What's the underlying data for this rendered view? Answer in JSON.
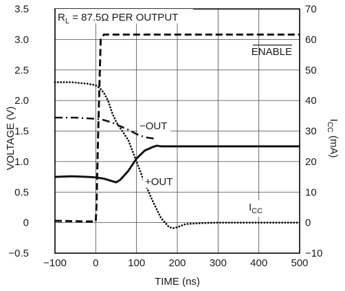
{
  "chart_data": {
    "type": "line",
    "title": "",
    "xlabel": "TIME (ns)",
    "ylabel_left": "VOLTAGE (V)",
    "ylabel_right": {
      "base": "I",
      "sub": "CC",
      "suffix": " (mA)"
    },
    "xlim": [
      -100,
      500
    ],
    "ylim_left": [
      -0.5,
      3.5
    ],
    "ylim_right": [
      -10,
      70
    ],
    "grid": true,
    "legend": "none",
    "x_ticks": [
      -100,
      0,
      100,
      200,
      300,
      400,
      500
    ],
    "x_tick_labels": [
      "−100",
      "0",
      "100",
      "200",
      "300",
      "400",
      "500"
    ],
    "y_left_ticks": [
      -0.5,
      0,
      0.5,
      1.0,
      1.5,
      2.0,
      2.5,
      3.0,
      3.5
    ],
    "y_left_tick_labels": [
      "−0.5",
      "0",
      "0.5",
      "1.0",
      "1.5",
      "2.0",
      "2.5",
      "3.0",
      "3.5"
    ],
    "y_right_ticks": [
      -10,
      0,
      10,
      20,
      30,
      40,
      50,
      60,
      70
    ],
    "y_right_tick_labels": [
      "−10",
      "0",
      "10",
      "20",
      "30",
      "40",
      "50",
      "60",
      "70"
    ],
    "annotations": {
      "load": {
        "prefix": "R",
        "sub": "L",
        "suffix": " = 87.5Ω PER OUTPUT"
      },
      "enable": "ENABLE",
      "minus_out": "−OUT",
      "plus_out": "+OUT",
      "icc": {
        "base": "I",
        "sub": "CC"
      }
    },
    "series": [
      {
        "key": "enable",
        "axis": "left",
        "style": "dashed",
        "x": [
          -100,
          -20,
          0,
          2,
          6,
          12,
          20,
          40,
          100,
          200,
          300,
          400,
          500
        ],
        "y": [
          0.03,
          0.02,
          0.02,
          0.3,
          1.5,
          3.0,
          3.08,
          3.08,
          3.08,
          3.08,
          3.08,
          3.08,
          3.08
        ]
      },
      {
        "key": "icc",
        "axis": "right",
        "style": "dotted",
        "x": [
          -100,
          -60,
          -20,
          0,
          10,
          20,
          30,
          40,
          50,
          60,
          80,
          100,
          120,
          140,
          160,
          180,
          190,
          200,
          220,
          250,
          300,
          400,
          500
        ],
        "y": [
          46,
          46,
          45.5,
          45,
          44,
          42.5,
          40,
          36,
          33,
          31,
          27,
          20,
          13,
          7,
          1.5,
          -1.5,
          -1.8,
          -1.5,
          -0.5,
          -0.2,
          0,
          0,
          0
        ]
      },
      {
        "key": "minus_out",
        "axis": "left",
        "style": "dashdot",
        "x": [
          -100,
          -50,
          0,
          20,
          40,
          60,
          80,
          100,
          120,
          140,
          150
        ],
        "y": [
          1.72,
          1.72,
          1.7,
          1.68,
          1.64,
          1.58,
          1.52,
          1.45,
          1.4,
          1.38,
          1.37
        ]
      },
      {
        "key": "plus_out",
        "axis": "left",
        "style": "solid",
        "x": [
          -100,
          -60,
          -20,
          0,
          20,
          40,
          50,
          60,
          80,
          100,
          120,
          140,
          150,
          160,
          200,
          300,
          400,
          500
        ],
        "y": [
          0.75,
          0.76,
          0.75,
          0.74,
          0.72,
          0.68,
          0.66,
          0.7,
          0.85,
          1.05,
          1.18,
          1.24,
          1.26,
          1.25,
          1.25,
          1.25,
          1.25,
          1.25
        ]
      }
    ]
  }
}
